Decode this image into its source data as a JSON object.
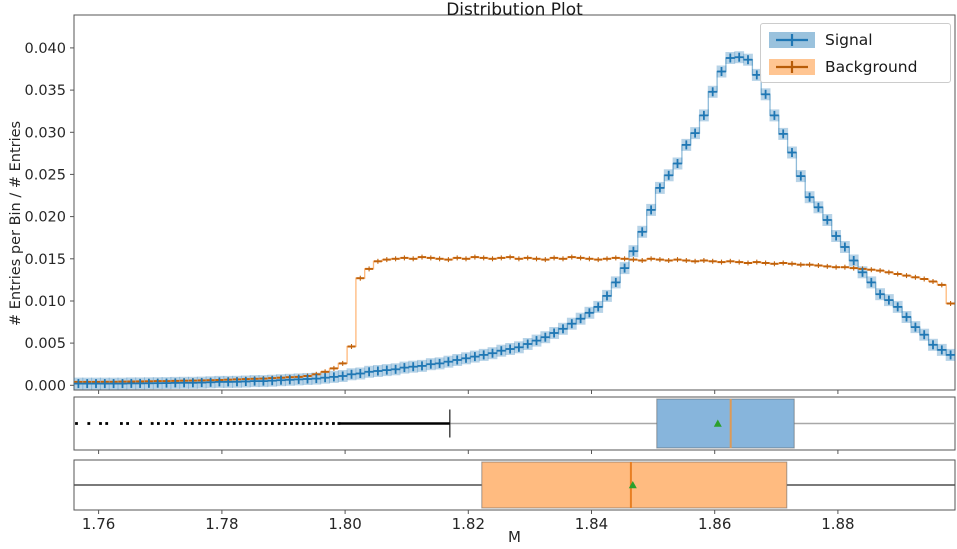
{
  "title": "Distribution Plot",
  "axes": {
    "xlabel": "M",
    "ylabel": "# Entries per Bin / # Entries",
    "x_ticks": [
      {
        "value": 1.76,
        "label": "1.76"
      },
      {
        "value": 1.78,
        "label": "1.78"
      },
      {
        "value": 1.8,
        "label": "1.80"
      },
      {
        "value": 1.82,
        "label": "1.82"
      },
      {
        "value": 1.84,
        "label": "1.84"
      },
      {
        "value": 1.86,
        "label": "1.86"
      },
      {
        "value": 1.88,
        "label": "1.88"
      }
    ],
    "y_ticks": [
      {
        "value": 0.0,
        "label": "0.000"
      },
      {
        "value": 0.005,
        "label": "0.005"
      },
      {
        "value": 0.01,
        "label": "0.010"
      },
      {
        "value": 0.015,
        "label": "0.015"
      },
      {
        "value": 0.02,
        "label": "0.020"
      },
      {
        "value": 0.025,
        "label": "0.025"
      },
      {
        "value": 0.03,
        "label": "0.030"
      },
      {
        "value": 0.035,
        "label": "0.035"
      },
      {
        "value": 0.04,
        "label": "0.040"
      }
    ]
  },
  "legend": {
    "position": "upper right",
    "items": [
      {
        "label": "Signal",
        "color": "#1f77b4"
      },
      {
        "label": "Background",
        "color": "#ff7f0e"
      }
    ]
  },
  "colors": {
    "signal": "#1f77b4",
    "signal_step": "rgba(31,119,180,0.5)",
    "signal_errorbox": "rgba(31,119,180,0.32)",
    "signal_boxfill": "#87b5dc",
    "background": "#ff7f0e",
    "background_step": "rgba(255,127,14,0.55)",
    "background_marker": "#c2620a",
    "background_boxfill": "#ffbb80",
    "median_signal": "#dd9a57",
    "median_background": "#e87f22",
    "mean_marker": "#2ca02c",
    "spine": "#555555",
    "whisker_signal": "#a8a8a8",
    "whisker_background": "#4f4f4f",
    "flier": "#000000"
  },
  "chart_data": [
    {
      "type": "line",
      "style": "step-histogram-with-errorbars",
      "title": "Distribution Plot",
      "xlabel": "M",
      "ylabel": "# Entries per Bin / # Entries",
      "xlim": [
        1.756,
        1.899
      ],
      "ylim": [
        0,
        0.0439
      ],
      "grid": false,
      "legend_position": "upper right",
      "bin_start": 1.756,
      "bin_width": 0.00143,
      "n_bins": 100,
      "series": [
        {
          "name": "Signal",
          "color": "#1f77b4",
          "values": [
            0.0002,
            0.0002,
            0.0002,
            0.0002,
            0.0002,
            0.0002,
            0.00022,
            0.00022,
            0.00024,
            0.00025,
            0.00026,
            0.00028,
            0.0003,
            0.0003,
            0.00032,
            0.00035,
            0.0004,
            0.0004,
            0.00042,
            0.00045,
            0.0005,
            0.0005,
            0.00055,
            0.0006,
            0.00065,
            0.0007,
            0.00075,
            0.0008,
            0.0009,
            0.001,
            0.0011,
            0.0013,
            0.0014,
            0.0016,
            0.0017,
            0.0018,
            0.0019,
            0.0021,
            0.0022,
            0.0023,
            0.0025,
            0.0026,
            0.0028,
            0.003,
            0.0032,
            0.0034,
            0.0036,
            0.0038,
            0.0041,
            0.0043,
            0.0045,
            0.0049,
            0.0053,
            0.0057,
            0.0062,
            0.0067,
            0.0073,
            0.0079,
            0.0086,
            0.0093,
            0.0106,
            0.0122,
            0.0139,
            0.0159,
            0.0182,
            0.0208,
            0.0234,
            0.0249,
            0.0263,
            0.0285,
            0.0299,
            0.032,
            0.0348,
            0.0372,
            0.0388,
            0.0389,
            0.0386,
            0.0368,
            0.0345,
            0.032,
            0.0298,
            0.0276,
            0.0248,
            0.0223,
            0.0211,
            0.0196,
            0.0177,
            0.0164,
            0.0148,
            0.0134,
            0.0122,
            0.0108,
            0.0101,
            0.0093,
            0.0081,
            0.0069,
            0.006,
            0.0048,
            0.0042,
            0.0036
          ]
        },
        {
          "name": "Background",
          "color": "#ff7f0e",
          "values": [
            0.0004,
            0.0004,
            0.0004,
            0.00042,
            0.00042,
            0.00044,
            0.00045,
            0.00046,
            0.00048,
            0.0005,
            0.0005,
            0.00052,
            0.00054,
            0.00056,
            0.00058,
            0.0006,
            0.00063,
            0.00066,
            0.0007,
            0.00073,
            0.00077,
            0.0008,
            0.00085,
            0.0009,
            0.00096,
            0.001,
            0.0011,
            0.0013,
            0.0016,
            0.002,
            0.0026,
            0.0046,
            0.0127,
            0.0138,
            0.0147,
            0.0149,
            0.015,
            0.0151,
            0.015,
            0.0152,
            0.0151,
            0.015,
            0.0149,
            0.0151,
            0.015,
            0.0152,
            0.0151,
            0.015,
            0.0151,
            0.0152,
            0.015,
            0.0151,
            0.015,
            0.0149,
            0.0151,
            0.015,
            0.0152,
            0.0151,
            0.015,
            0.0149,
            0.015,
            0.0151,
            0.015,
            0.0149,
            0.0148,
            0.015,
            0.0149,
            0.0148,
            0.0149,
            0.0148,
            0.0147,
            0.0148,
            0.0147,
            0.0146,
            0.0147,
            0.0146,
            0.0145,
            0.0146,
            0.0145,
            0.0144,
            0.0145,
            0.0144,
            0.0143,
            0.0143,
            0.0142,
            0.0141,
            0.014,
            0.014,
            0.0139,
            0.0138,
            0.0137,
            0.0136,
            0.0134,
            0.0132,
            0.013,
            0.0128,
            0.0126,
            0.0123,
            0.0119,
            0.0097
          ]
        }
      ]
    },
    {
      "type": "boxplot",
      "name": "Signal",
      "orientation": "horizontal",
      "whisker_low": 1.817,
      "q1": 1.8506,
      "median": 1.8626,
      "q3": 1.8729,
      "whisker_high": 1.899,
      "mean": 1.8605,
      "fliers": [
        1.7564,
        1.7584,
        1.7603,
        1.7613,
        1.7637,
        1.7647,
        1.7668,
        1.7687,
        1.7697,
        1.771,
        1.772,
        1.7741,
        1.7752,
        1.7764,
        1.7775,
        1.7786,
        1.7798,
        1.781,
        1.782,
        1.783,
        1.7841,
        1.7851,
        1.7862,
        1.7872,
        1.7882,
        1.7893,
        1.7903,
        1.7913,
        1.7922,
        1.7932,
        1.7942,
        1.7952,
        1.7961,
        1.7971,
        1.7981,
        1.799
      ],
      "flier_dense_band": [
        1.799,
        1.817
      ]
    },
    {
      "type": "boxplot",
      "name": "Background",
      "orientation": "horizontal",
      "whisker_low": 1.756,
      "q1": 1.8222,
      "median": 1.8464,
      "q3": 1.8717,
      "whisker_high": 1.899,
      "mean": 1.8467,
      "fliers": [],
      "flier_dense_band": null
    }
  ]
}
